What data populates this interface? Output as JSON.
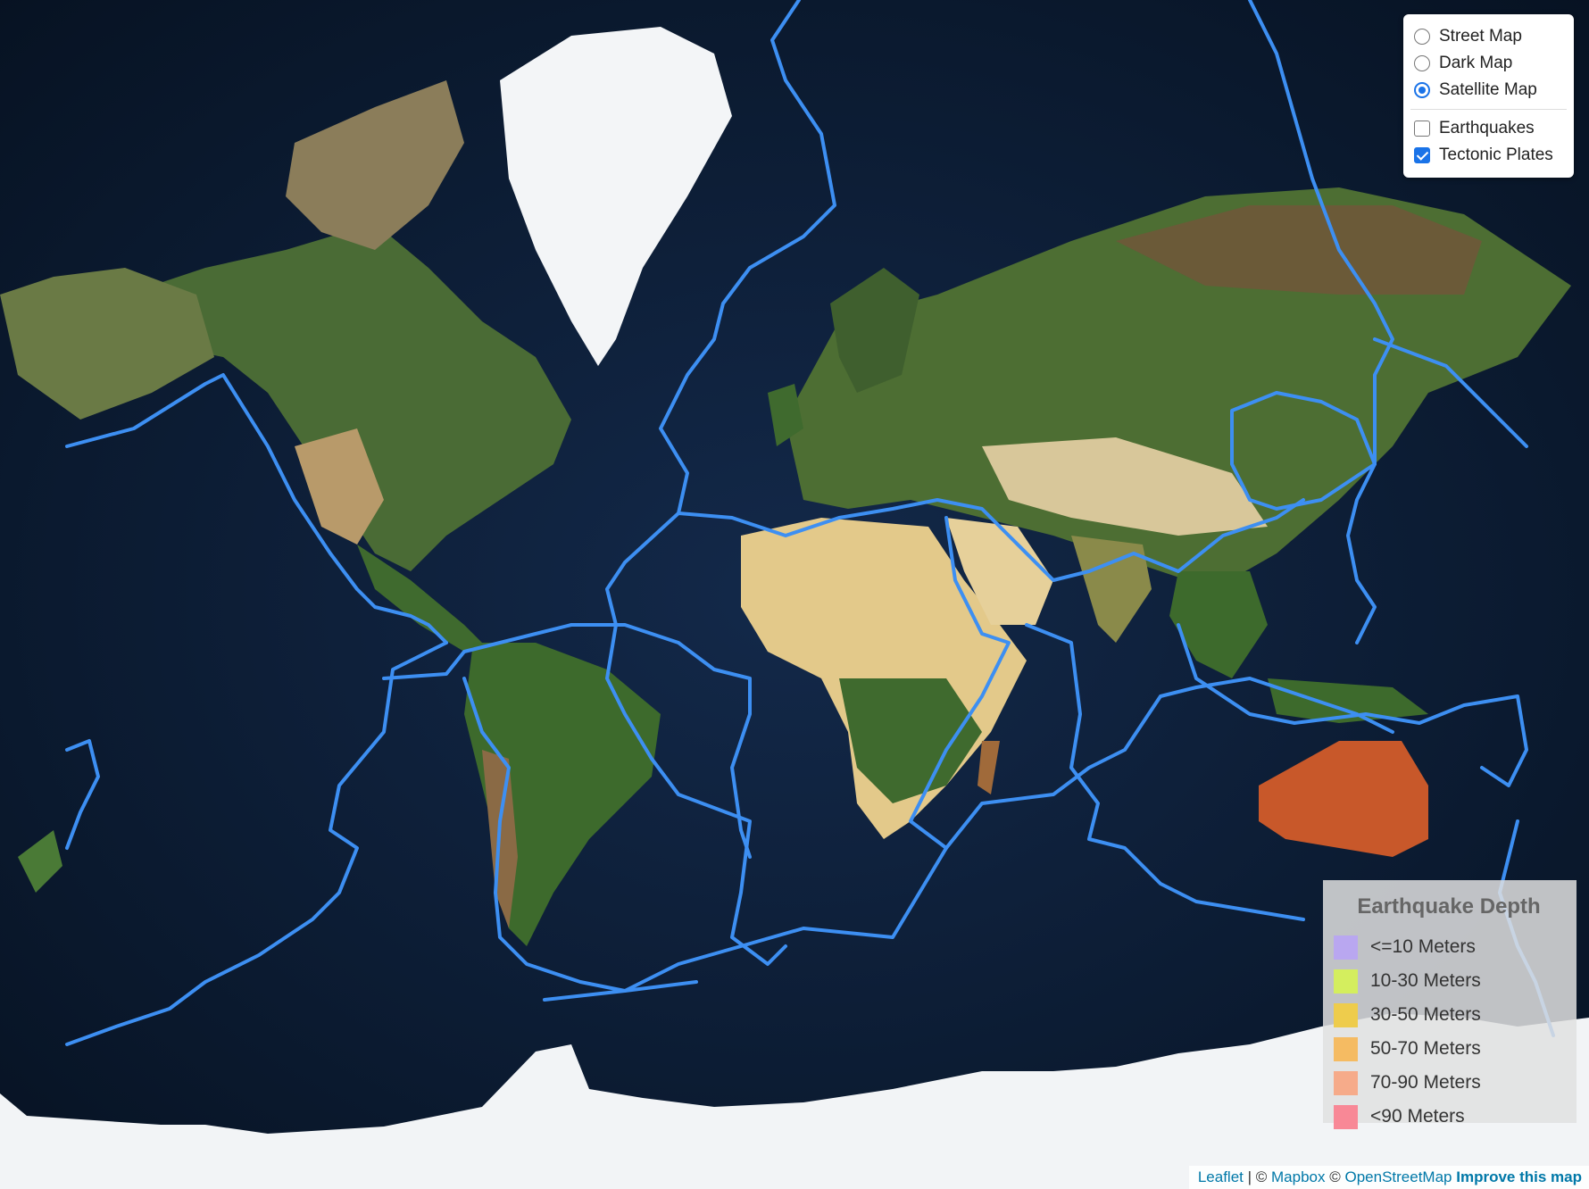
{
  "layer_control": {
    "base_layers": [
      {
        "label": "Street Map",
        "selected": false
      },
      {
        "label": "Dark Map",
        "selected": false
      },
      {
        "label": "Satellite Map",
        "selected": true
      }
    ],
    "overlays": [
      {
        "label": "Earthquakes",
        "checked": false
      },
      {
        "label": "Tectonic Plates",
        "checked": true
      }
    ]
  },
  "legend": {
    "title": "Earthquake Depth",
    "items": [
      {
        "label": "<=10 Meters",
        "color": "#b9a7f0"
      },
      {
        "label": "10-30 Meters",
        "color": "#d4ee5e"
      },
      {
        "label": "30-50 Meters",
        "color": "#eecc4c"
      },
      {
        "label": "50-70 Meters",
        "color": "#f5bb62"
      },
      {
        "label": "70-90 Meters",
        "color": "#f6ab8a"
      },
      {
        "label": "<90 Meters",
        "color": "#f88896"
      }
    ]
  },
  "attribution": {
    "leaflet": "Leaflet",
    "sep1": " | © ",
    "mapbox": "Mapbox",
    "sep2": " © ",
    "osm": "OpenStreetMap",
    "improve": "Improve this map"
  },
  "colors": {
    "ocean": "#0b1a2c",
    "plate_boundary": "#3d8ff2",
    "ice": "#f2f4f6",
    "desert": "#e7cf8e",
    "forest": "#3f6a2e",
    "australia": "#c8582a"
  }
}
